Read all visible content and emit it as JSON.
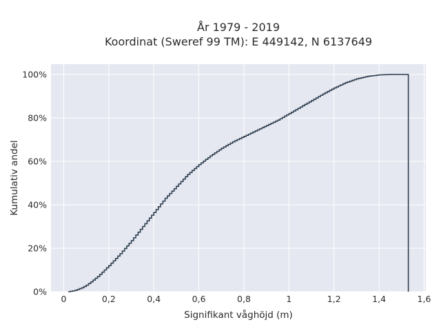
{
  "chart_data": {
    "type": "line",
    "subtype": "cumulative-step",
    "title_line1": "År 1979 - 2019",
    "title_line2": "Koordinat (Sweref 99 TM): E 449142, N 6137649",
    "xlabel": "Signifikant våghöjd (m)",
    "ylabel": "Kumulativ andel",
    "xlim": [
      -0.05,
      1.6
    ],
    "ylim": [
      0,
      100
    ],
    "x_ticks": [
      0,
      0.2,
      0.4,
      0.6,
      0.8,
      1.0,
      1.2,
      1.4,
      1.6
    ],
    "x_tick_labels": [
      "0",
      "0,2",
      "0,4",
      "0,6",
      "0,8",
      "1",
      "1,2",
      "1,4",
      "1,6"
    ],
    "y_ticks": [
      0,
      20,
      40,
      60,
      80,
      100
    ],
    "y_tick_labels": [
      "0%",
      "20%",
      "40%",
      "60%",
      "80%",
      "100%"
    ],
    "grid": true,
    "colors": {
      "background": "#e5e8f0",
      "grid": "#ffffff",
      "line": "#2f3e50"
    },
    "series": [
      {
        "x": [
          0.02,
          0.05,
          0.08,
          0.1,
          0.12,
          0.15,
          0.18,
          0.2,
          0.25,
          0.3,
          0.35,
          0.4,
          0.45,
          0.5,
          0.55,
          0.6,
          0.65,
          0.7,
          0.75,
          0.8,
          0.85,
          0.9,
          0.95,
          1.0,
          1.05,
          1.1,
          1.15,
          1.2,
          1.25,
          1.3,
          1.35,
          1.4,
          1.45,
          1.5,
          1.53
        ],
        "y": [
          0,
          0.6,
          1.8,
          3.0,
          4.5,
          7.0,
          10.0,
          12.0,
          17.5,
          23.5,
          30.0,
          36.5,
          43.0,
          48.5,
          54.0,
          58.5,
          62.5,
          66.0,
          69.0,
          71.5,
          74.0,
          76.5,
          79.0,
          82.0,
          85.0,
          88.0,
          91.0,
          93.8,
          96.2,
          98.0,
          99.2,
          99.8,
          100,
          100,
          100
        ]
      }
    ]
  }
}
